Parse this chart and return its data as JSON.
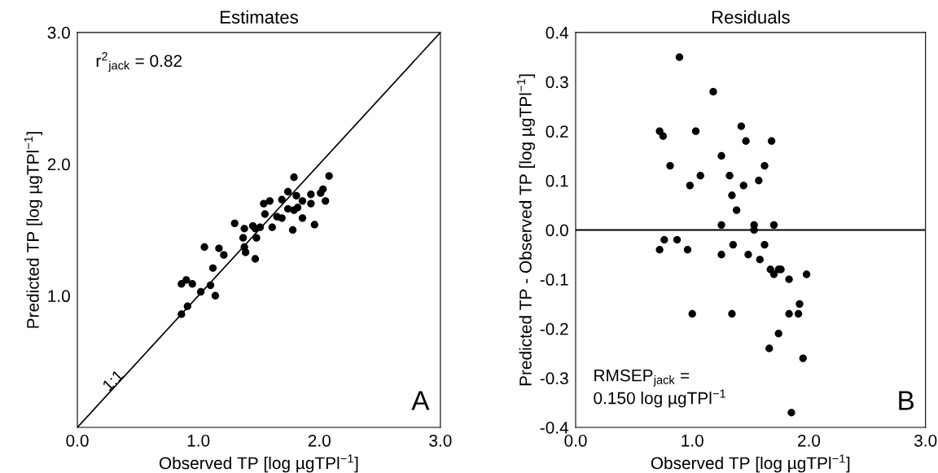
{
  "chart_data": [
    {
      "type": "scatter",
      "title": "Estimates",
      "xlabel": "Observed TP [log µgTPl$^{−1}$]",
      "ylabel": "Predicted TP [log µgTPl$^{−1}$]",
      "xlim": [
        0,
        3
      ],
      "ylim": [
        0,
        3
      ],
      "xticks": [
        {
          "value": 0,
          "label": "0.0"
        },
        {
          "value": 1,
          "label": "1.0"
        },
        {
          "value": 2,
          "label": "2.0"
        },
        {
          "value": 3,
          "label": "3.0"
        }
      ],
      "yticks": [
        {
          "value": 1,
          "label": "1.0"
        },
        {
          "value": 2,
          "label": "2.0"
        },
        {
          "value": 3,
          "label": "3.0"
        }
      ],
      "grid": false,
      "legend": false,
      "annotations": [
        "r$^{2}$$_{jack}$ = 0.82",
        {
          "text": "1:1",
          "x": 0.3,
          "y": 0.35
        },
        "A"
      ],
      "series": [
        {
          "color": "#000000",
          "marker": "circle",
          "x": [
            1.79,
            2.08,
            2.03,
            2.01,
            2.05,
            1.74,
            1.81,
            1.93,
            1.93,
            1.86,
            1.69,
            1.59,
            1.54,
            1.74,
            1.79,
            1.82,
            1.55,
            1.65,
            1.69,
            1.86,
            1.96,
            1.78,
            1.3,
            1.38,
            1.45,
            1.47,
            1.51,
            1.61,
            1.37,
            1.48,
            1.38,
            1.39,
            1.47,
            1.05,
            1.17,
            1.21,
            1.12,
            0.86,
            0.9,
            0.95,
            1.1,
            1.02,
            1.14,
            0.91,
            0.86
          ],
          "values": [
            1.9,
            1.91,
            1.81,
            1.78,
            1.72,
            1.79,
            1.76,
            1.77,
            1.7,
            1.72,
            1.73,
            1.72,
            1.7,
            1.66,
            1.65,
            1.67,
            1.62,
            1.6,
            1.59,
            1.59,
            1.54,
            1.5,
            1.55,
            1.51,
            1.53,
            1.51,
            1.52,
            1.52,
            1.44,
            1.44,
            1.37,
            1.33,
            1.28,
            1.37,
            1.36,
            1.31,
            1.21,
            1.09,
            1.12,
            1.09,
            1.08,
            1.03,
            1.0,
            0.92,
            0.86
          ]
        },
        {
          "type": "line",
          "color": "#000000",
          "x": [
            0,
            3
          ],
          "values": [
            0,
            3
          ],
          "line_style": "solid",
          "marker": "none"
        }
      ]
    },
    {
      "type": "scatter",
      "title": "Residuals",
      "xlabel": "Observed TP [log µgTPl$^{−1}$]",
      "ylabel": "Predicted TP - Observed TP [log µgTPl$^{−1}$]",
      "xlim": [
        0,
        3
      ],
      "ylim": [
        -0.4,
        0.4
      ],
      "xticks": [
        {
          "value": 0,
          "label": "0.0"
        },
        {
          "value": 1,
          "label": "1.0"
        },
        {
          "value": 2,
          "label": "2.0"
        },
        {
          "value": 3,
          "label": "3.0"
        }
      ],
      "yticks": [
        {
          "value": -0.4,
          "label": "-0.4"
        },
        {
          "value": -0.3,
          "label": "-0.3"
        },
        {
          "value": -0.2,
          "label": "-0.2"
        },
        {
          "value": -0.1,
          "label": "-0.1"
        },
        {
          "value": 0,
          "label": "0.0"
        },
        {
          "value": 0.1,
          "label": "0.1"
        },
        {
          "value": 0.2,
          "label": "0.2"
        },
        {
          "value": 0.3,
          "label": "0.3"
        },
        {
          "value": 0.4,
          "label": "0.4"
        }
      ],
      "grid": false,
      "legend": false,
      "ref_lines": [
        {
          "axis": "y",
          "value": 0,
          "color": "#000000"
        }
      ],
      "annotations": [
        "RMSEP$_{jack}$ =\n0.150 log µgTPl$^{−1}$",
        "B"
      ],
      "series": [
        {
          "color": "#000000",
          "marker": "circle",
          "x": [
            0.89,
            1.18,
            1.42,
            0.72,
            0.75,
            1.03,
            1.46,
            1.68,
            1.25,
            0.81,
            1.62,
            1.07,
            1.32,
            1.57,
            1.44,
            0.98,
            1.34,
            1.38,
            1.25,
            1.7,
            1.53,
            1.53,
            0.87,
            0.76,
            1.35,
            1.62,
            0.72,
            0.96,
            1.25,
            1.48,
            1.58,
            1.67,
            1.74,
            1.7,
            1.76,
            1.83,
            1.98,
            1.92,
            1.91,
            1.83,
            1.0,
            1.34,
            1.74,
            1.66,
            1.95,
            1.85
          ],
          "values": [
            0.35,
            0.28,
            0.21,
            0.2,
            0.19,
            0.2,
            0.18,
            0.18,
            0.15,
            0.13,
            0.13,
            0.11,
            0.11,
            0.1,
            0.09,
            0.09,
            0.07,
            0.04,
            0.01,
            0.01,
            0.01,
            0.0,
            -0.02,
            -0.02,
            -0.03,
            -0.03,
            -0.04,
            -0.04,
            -0.05,
            -0.05,
            -0.06,
            -0.08,
            -0.08,
            -0.09,
            -0.08,
            -0.1,
            -0.09,
            -0.15,
            -0.17,
            -0.17,
            -0.17,
            -0.17,
            -0.21,
            -0.24,
            -0.26,
            -0.37
          ]
        }
      ]
    }
  ]
}
